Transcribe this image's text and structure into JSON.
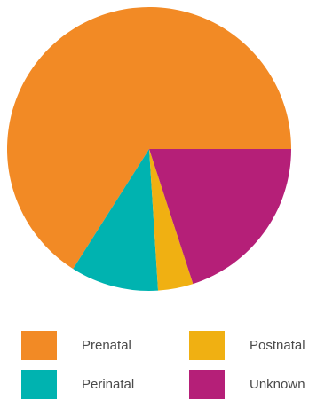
{
  "chart_data": {
    "type": "pie",
    "title": "",
    "start": "3 o'clock, counter-clockwise",
    "slices": [
      {
        "label": "Prenatal",
        "value": 66,
        "color": "#f28a25"
      },
      {
        "label": "Perinatal",
        "value": 10,
        "color": "#00b3b0"
      },
      {
        "label": "Postnatal",
        "value": 4,
        "color": "#f0b012"
      },
      {
        "label": "Unknown",
        "value": 20,
        "color": "#b51f78"
      }
    ],
    "legend": {
      "position": "bottom",
      "columns": 2,
      "items": [
        {
          "label": "Prenatal",
          "color": "#f28a25"
        },
        {
          "label": "Perinatal",
          "color": "#00b3b0"
        },
        {
          "label": "Postnatal",
          "color": "#f0b012"
        },
        {
          "label": "Unknown",
          "color": "#b51f78"
        }
      ]
    }
  }
}
